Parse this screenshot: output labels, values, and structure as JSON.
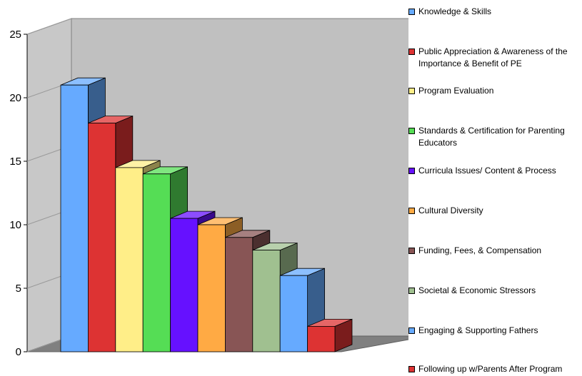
{
  "chart_data": {
    "type": "bar",
    "title": "",
    "xlabel": "",
    "ylabel": "",
    "ylim": [
      0,
      25
    ],
    "yticks": [
      0,
      5,
      10,
      15,
      20,
      25
    ],
    "ytick_labels": [
      "0",
      "5",
      "10",
      "15",
      "20",
      "25"
    ],
    "grid": false,
    "legend_position": "right",
    "three_d": true,
    "categories": [
      "Knowledge & Skills",
      "Public Appreciation & Awareness of the Importance & Benefit of PE",
      "Program Evaluation",
      "Standards & Certification for Parenting Educators",
      "Curricula Issues/ Content & Process",
      "Cultural Diversity",
      "Funding, Fees, & Compensation",
      "Societal & Economic Stressors",
      "Engaging & Supporting Fathers",
      "Following up w/Parents After Program"
    ],
    "values": [
      21,
      18,
      14.5,
      14,
      10.5,
      10,
      9,
      8,
      6,
      2
    ],
    "colors": [
      "#66aaff",
      "#dd3333",
      "#ffee88",
      "#55dd55",
      "#6611ff",
      "#ffaa44",
      "#885555",
      "#a0c090",
      "#66aaff",
      "#dd3333"
    ]
  },
  "legend": {
    "items": [
      {
        "label_lines": [
          "Knowledge & Skills"
        ],
        "color": "#66aaff"
      },
      {
        "label_lines": [
          "Public Appreciation & Awareness of the",
          "Importance & Benefit of PE"
        ],
        "color": "#dd3333"
      },
      {
        "label_lines": [
          "Program Evaluation"
        ],
        "color": "#ffee88"
      },
      {
        "label_lines": [
          "Standards & Certification for Parenting",
          "Educators"
        ],
        "color": "#55dd55"
      },
      {
        "label_lines": [
          "Curricula Issues/ Content & Process"
        ],
        "color": "#6611ff"
      },
      {
        "label_lines": [
          "Cultural Diversity"
        ],
        "color": "#ffaa44"
      },
      {
        "label_lines": [
          "Funding, Fees, & Compensation"
        ],
        "color": "#885555"
      },
      {
        "label_lines": [
          "Societal & Economic Stressors"
        ],
        "color": "#a0c090"
      },
      {
        "label_lines": [
          "Engaging & Supporting Fathers"
        ],
        "color": "#66aaff"
      },
      {
        "label_lines": [
          "Following up w/Parents After Program"
        ],
        "color": "#dd3333"
      }
    ]
  }
}
